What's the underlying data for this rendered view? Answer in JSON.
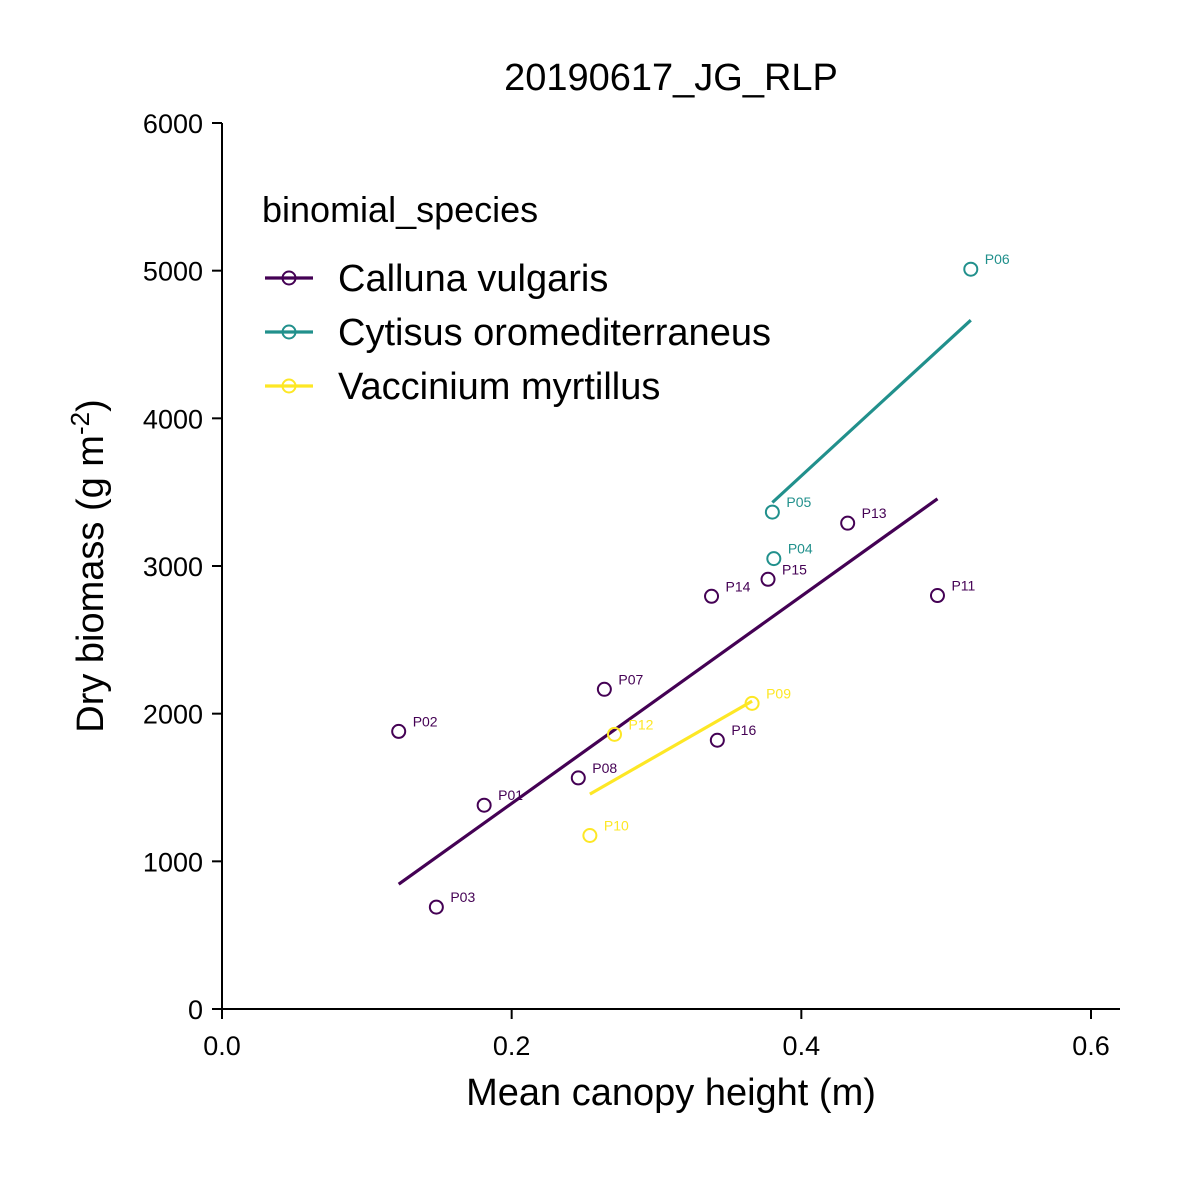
{
  "chart_data": {
    "type": "scatter",
    "title": "20190617_JG_RLP",
    "xlabel": "Mean canopy height (m)",
    "ylabel_main": "Dry biomass (g m",
    "ylabel_sup": "-2",
    "ylabel_close": ")",
    "xlim": [
      0.0,
      0.62
    ],
    "ylim": [
      0,
      6000
    ],
    "x_ticks": [
      0.0,
      0.2,
      0.4,
      0.6
    ],
    "x_tick_labels": [
      "0.0",
      "0.2",
      "0.4",
      "0.6"
    ],
    "y_ticks": [
      0,
      1000,
      2000,
      3000,
      4000,
      5000,
      6000
    ],
    "y_tick_labels": [
      "0",
      "1000",
      "2000",
      "3000",
      "4000",
      "5000",
      "6000"
    ],
    "grid": false,
    "legend": {
      "title": "binomial_species",
      "placement": "top-left"
    },
    "series": [
      {
        "name": "Calluna vulgaris",
        "color": "#440154",
        "points": [
          {
            "label": "P01",
            "x": 0.181,
            "y": 1380
          },
          {
            "label": "P02",
            "x": 0.122,
            "y": 1880
          },
          {
            "label": "P03",
            "x": 0.148,
            "y": 690
          },
          {
            "label": "P07",
            "x": 0.264,
            "y": 2165
          },
          {
            "label": "P08",
            "x": 0.246,
            "y": 1565
          },
          {
            "label": "P11",
            "x": 0.494,
            "y": 2800
          },
          {
            "label": "P13",
            "x": 0.432,
            "y": 3290
          },
          {
            "label": "P14",
            "x": 0.338,
            "y": 2795
          },
          {
            "label": "P15",
            "x": 0.377,
            "y": 2910
          },
          {
            "label": "P16",
            "x": 0.342,
            "y": 1820
          }
        ],
        "fit": {
          "x": [
            0.122,
            0.494
          ],
          "y": [
            845,
            3455
          ]
        }
      },
      {
        "name": "Cytisus oromediterraneus",
        "color": "#21908c",
        "points": [
          {
            "label": "P04",
            "x": 0.381,
            "y": 3050
          },
          {
            "label": "P05",
            "x": 0.38,
            "y": 3365
          },
          {
            "label": "P06",
            "x": 0.517,
            "y": 5010
          }
        ],
        "fit": {
          "x": [
            0.38,
            0.517
          ],
          "y": [
            3430,
            4665
          ]
        }
      },
      {
        "name": "Vaccinium myrtillus",
        "color": "#fde725",
        "points": [
          {
            "label": "P09",
            "x": 0.366,
            "y": 2070
          },
          {
            "label": "P10",
            "x": 0.254,
            "y": 1175
          },
          {
            "label": "P12",
            "x": 0.271,
            "y": 1860
          }
        ],
        "fit": {
          "x": [
            0.254,
            0.366
          ],
          "y": [
            1455,
            2085
          ]
        }
      }
    ]
  }
}
